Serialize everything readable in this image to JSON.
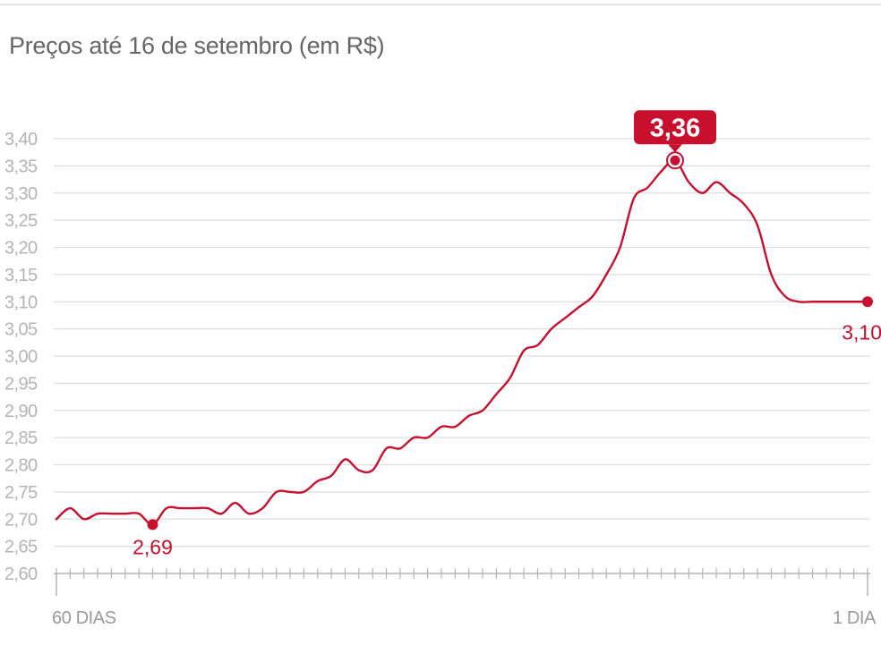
{
  "title": "Preços até 16 de setembro (em R$)",
  "colors": {
    "line": "#c8102e",
    "grid": "#dddddd",
    "ticks": "#b4b4b4",
    "badge": "#c8102e"
  },
  "chart_data": {
    "type": "line",
    "title": "Preços até 16 de setembro (em R$)",
    "ylim": [
      2.6,
      3.4
    ],
    "yticks": [
      "2,60",
      "2,65",
      "2,70",
      "2,75",
      "2,80",
      "2,85",
      "2,90",
      "2,95",
      "3,00",
      "3,05",
      "3,10",
      "3,15",
      "3,20",
      "3,25",
      "3,30",
      "3,35",
      "3,40"
    ],
    "xlabels": {
      "start": "60 DIAS",
      "end": "1 DIA"
    },
    "x_range": [
      60,
      1
    ],
    "grid": true,
    "series": [
      {
        "points": [
          [
            60,
            2.7
          ],
          [
            59,
            2.72
          ],
          [
            58,
            2.7
          ],
          [
            57,
            2.71
          ],
          [
            56,
            2.71
          ],
          [
            55,
            2.71
          ],
          [
            54,
            2.71
          ],
          [
            53,
            2.69
          ],
          [
            52,
            2.72
          ],
          [
            51,
            2.72
          ],
          [
            50,
            2.72
          ],
          [
            49,
            2.72
          ],
          [
            48,
            2.71
          ],
          [
            47,
            2.73
          ],
          [
            46,
            2.71
          ],
          [
            45,
            2.72
          ],
          [
            44,
            2.75
          ],
          [
            43,
            2.75
          ],
          [
            42,
            2.75
          ],
          [
            41,
            2.77
          ],
          [
            40,
            2.78
          ],
          [
            39,
            2.81
          ],
          [
            38,
            2.79
          ],
          [
            37,
            2.79
          ],
          [
            36,
            2.83
          ],
          [
            35,
            2.83
          ],
          [
            34,
            2.85
          ],
          [
            33,
            2.85
          ],
          [
            32,
            2.87
          ],
          [
            31,
            2.87
          ],
          [
            30,
            2.89
          ],
          [
            29,
            2.9
          ],
          [
            28,
            2.93
          ],
          [
            27,
            2.96
          ],
          [
            26,
            3.01
          ],
          [
            25,
            3.02
          ],
          [
            24,
            3.05
          ],
          [
            23,
            3.07
          ],
          [
            22,
            3.09
          ],
          [
            21,
            3.11
          ],
          [
            20,
            3.15
          ],
          [
            19,
            3.2
          ],
          [
            18,
            3.29
          ],
          [
            17,
            3.31
          ],
          [
            16,
            3.34
          ],
          [
            15,
            3.36
          ],
          [
            14,
            3.32
          ],
          [
            13,
            3.3
          ],
          [
            12,
            3.32
          ],
          [
            11,
            3.3
          ],
          [
            10,
            3.28
          ],
          [
            9,
            3.24
          ],
          [
            8,
            3.15
          ],
          [
            7,
            3.11
          ],
          [
            6,
            3.1
          ],
          [
            5,
            3.1
          ],
          [
            4,
            3.1
          ],
          [
            3,
            3.1
          ],
          [
            2,
            3.1
          ],
          [
            1,
            3.1
          ]
        ]
      }
    ],
    "annotations": [
      {
        "x": 53,
        "y": 2.69,
        "label": "2,69",
        "style": "point"
      },
      {
        "x": 15,
        "y": 3.36,
        "label": "3,36",
        "style": "badge"
      },
      {
        "x": 1,
        "y": 3.1,
        "label": "3,10",
        "style": "point"
      }
    ]
  }
}
